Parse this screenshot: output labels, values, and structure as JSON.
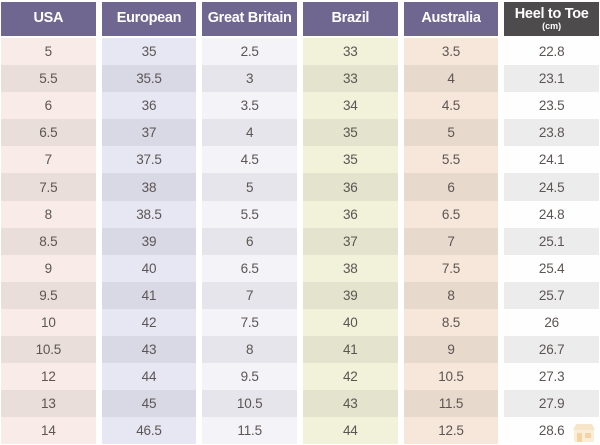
{
  "table": {
    "columns": [
      {
        "id": "usa",
        "label": "USA",
        "sublabel": "",
        "header_bg": "#6f678f",
        "tint": "#f9ece8",
        "tint_alt": "#eadedb"
      },
      {
        "id": "european",
        "label": "European",
        "sublabel": "",
        "header_bg": "#6f678f",
        "tint": "#e7e6f3",
        "tint_alt": "#d9d8e5"
      },
      {
        "id": "great-britain",
        "label": "Great Britain",
        "sublabel": "",
        "header_bg": "#6f678f",
        "tint": "#f4f3f8",
        "tint_alt": "#e6e5eb"
      },
      {
        "id": "brazil",
        "label": "Brazil",
        "sublabel": "",
        "header_bg": "#6f678f",
        "tint": "#f2f1da",
        "tint_alt": "#e4e3cd"
      },
      {
        "id": "australia",
        "label": "Australia",
        "sublabel": "",
        "header_bg": "#6f678f",
        "tint": "#f7e7da",
        "tint_alt": "#e8d9cd"
      },
      {
        "id": "heel-to-toe",
        "label": "Heel to Toe",
        "sublabel": "(cm)",
        "header_bg": "#4d4b4c",
        "tint": "#fefefe",
        "tint_alt": "#ececed"
      }
    ],
    "rows": [
      [
        "5",
        "35",
        "2.5",
        "33",
        "3.5",
        "22.8"
      ],
      [
        "5.5",
        "35.5",
        "3",
        "33",
        "4",
        "23.1"
      ],
      [
        "6",
        "36",
        "3.5",
        "34",
        "4.5",
        "23.5"
      ],
      [
        "6.5",
        "37",
        "4",
        "35",
        "5",
        "23.8"
      ],
      [
        "7",
        "37.5",
        "4.5",
        "35",
        "5.5",
        "24.1"
      ],
      [
        "7.5",
        "38",
        "5",
        "36",
        "6",
        "24.5"
      ],
      [
        "8",
        "38.5",
        "5.5",
        "36",
        "6.5",
        "24.8"
      ],
      [
        "8.5",
        "39",
        "6",
        "37",
        "7",
        "25.1"
      ],
      [
        "9",
        "40",
        "6.5",
        "38",
        "7.5",
        "25.4"
      ],
      [
        "9.5",
        "41",
        "7",
        "39",
        "8",
        "25.7"
      ],
      [
        "10",
        "42",
        "7.5",
        "40",
        "8.5",
        "26"
      ],
      [
        "10.5",
        "43",
        "8",
        "41",
        "9",
        "26.7"
      ],
      [
        "12",
        "44",
        "9.5",
        "42",
        "10.5",
        "27.3"
      ],
      [
        "13",
        "45",
        "10.5",
        "43",
        "11.5",
        "27.9"
      ],
      [
        "14",
        "46.5",
        "11.5",
        "44",
        "12.5",
        "28.6"
      ]
    ]
  },
  "colors": {
    "header_purple": "#6f678f",
    "header_dark": "#4d4b4c",
    "body_text": "#5c5553",
    "watermark_orange": "#e8a33d"
  },
  "watermark": {
    "icon": "shop-logo-icon"
  }
}
